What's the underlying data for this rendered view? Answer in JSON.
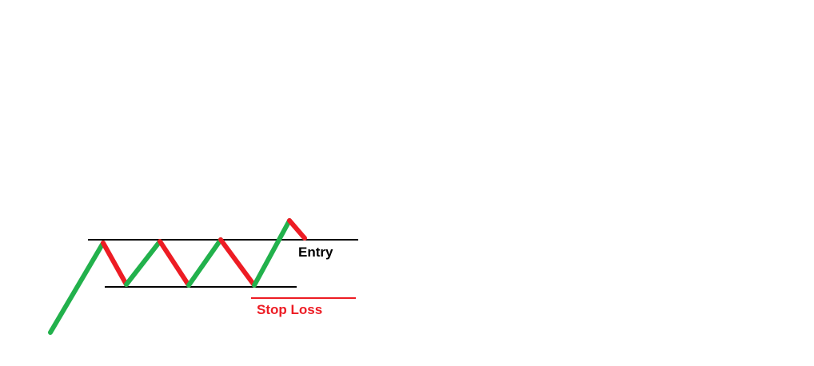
{
  "labels": {
    "entry": "Entry",
    "stop_loss": "Stop Loss"
  },
  "colors": {
    "up_move": "#22b14c",
    "down_move": "#ed1c24",
    "level_line": "#000000",
    "stop_loss": "#ed1c24",
    "background": "#ffffff"
  }
}
